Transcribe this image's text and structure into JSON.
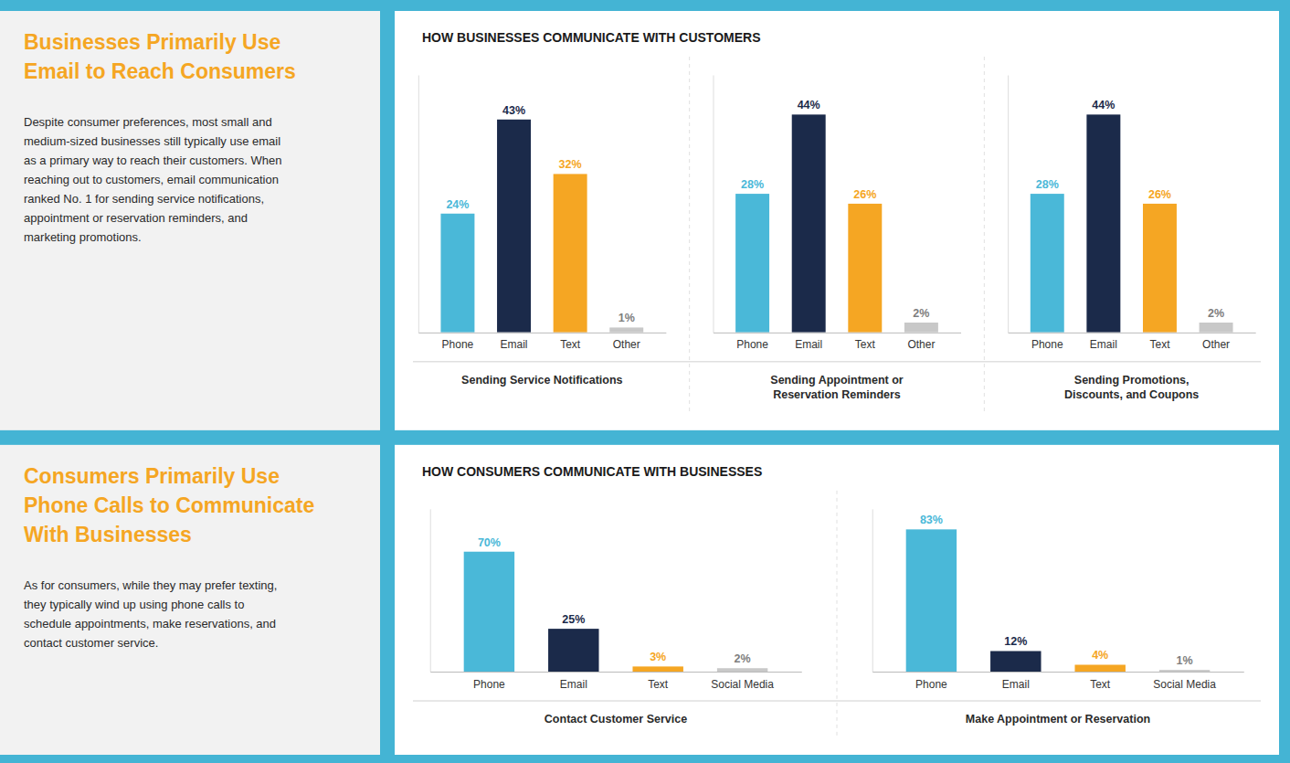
{
  "chart_data": [
    {
      "type": "bar",
      "title": "Sending Service Notifications",
      "categories": [
        "Phone",
        "Email",
        "Text",
        "Other"
      ],
      "values": [
        24,
        43,
        32,
        1
      ],
      "value_labels": [
        "24%",
        "43%",
        "32%",
        "1%"
      ],
      "colors": [
        "#4ab8d8",
        "#1b2a4a",
        "#f5a623",
        "#c8c8c8"
      ],
      "ylim": [
        0,
        52
      ],
      "data_labels": true,
      "tick_labels": "x",
      "grid": false,
      "annotations": [
        {
          "text": "Businesses Primarily Use",
          "color": "#f5a623"
        },
        {
          "text": "Email to Reach Consumers",
          "color": "#f5a623"
        },
        {
          "text": "Despite consumer preferences, most small and\nmedium-sized businesses still typically use email\nas a primary way to reach their customers. When\nreaching out to customers, email communication\nranked No. 1 for sending service notifications,\nappointment or reservation reminders, and\nmarketing promotions."
        },
        {
          "text": "HOW BUSINESSES COMMUNICATE WITH CUSTOMERS"
        }
      ]
    },
    {
      "type": "bar",
      "title": "Sending Appointment or\nReservation Reminders",
      "categories": [
        "Phone",
        "Email",
        "Text",
        "Other"
      ],
      "values": [
        28,
        44,
        26,
        2
      ],
      "value_labels": [
        "28%",
        "44%",
        "26%",
        "2%"
      ],
      "colors": [
        "#4ab8d8",
        "#1b2a4a",
        "#f5a623",
        "#c8c8c8"
      ],
      "ylim": [
        0,
        52
      ],
      "data_labels": true,
      "tick_labels": "x",
      "grid": false
    },
    {
      "type": "bar",
      "title": "Sending Promotions,\nDiscounts, and Coupons",
      "categories": [
        "Phone",
        "Email",
        "Text",
        "Other"
      ],
      "values": [
        28,
        44,
        26,
        2
      ],
      "value_labels": [
        "28%",
        "44%",
        "26%",
        "2%"
      ],
      "colors": [
        "#4ab8d8",
        "#1b2a4a",
        "#f5a623",
        "#c8c8c8"
      ],
      "ylim": [
        0,
        52
      ],
      "data_labels": true,
      "tick_labels": "x",
      "grid": false
    },
    {
      "type": "bar",
      "title": "Contact Customer Service",
      "categories": [
        "Phone",
        "Email",
        "Text",
        "Social Media"
      ],
      "values": [
        70,
        25,
        3,
        2
      ],
      "value_labels": [
        "70%",
        "25%",
        "3%",
        "2%"
      ],
      "colors": [
        "#4ab8d8",
        "#1b2a4a",
        "#f5a623",
        "#c8c8c8"
      ],
      "ylim": [
        0,
        95
      ],
      "data_labels": true,
      "tick_labels": "x",
      "grid": false,
      "annotations": [
        {
          "text": "Consumers Primarily Use",
          "color": "#f5a623"
        },
        {
          "text": "Phone Calls to Communicate",
          "color": "#f5a623"
        },
        {
          "text": "With Businesses",
          "color": "#f5a623"
        },
        {
          "text": "As for consumers, while they may prefer texting,\nthey typically wind up using phone calls to\nschedule appointments, make reservations, and\ncontact customer service."
        },
        {
          "text": "HOW CONSUMERS COMMUNICATE WITH BUSINESSES"
        }
      ]
    },
    {
      "type": "bar",
      "title": "Make Appointment or Reservation",
      "categories": [
        "Phone",
        "Email",
        "Text",
        "Social Media"
      ],
      "values": [
        83,
        12,
        4,
        1
      ],
      "value_labels": [
        "83%",
        "12%",
        "4%",
        "1%"
      ],
      "colors": [
        "#4ab8d8",
        "#1b2a4a",
        "#f5a623",
        "#c8c8c8"
      ],
      "ylim": [
        0,
        95
      ],
      "data_labels": true,
      "tick_labels": "x",
      "grid": false
    }
  ]
}
